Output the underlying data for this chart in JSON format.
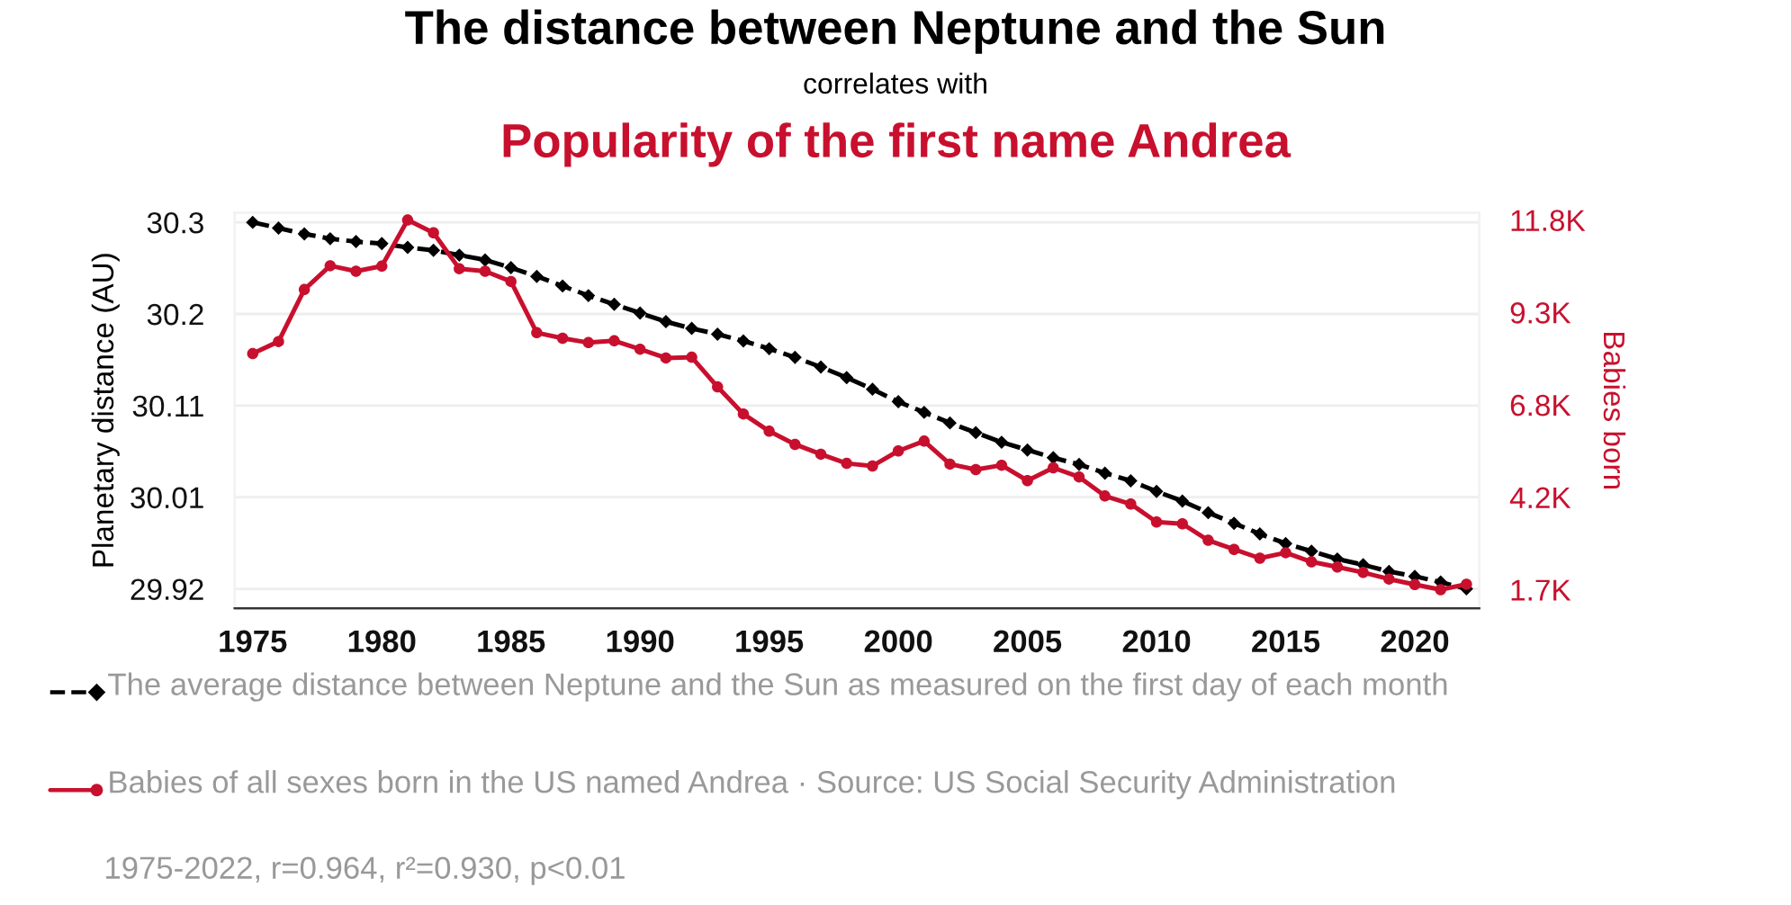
{
  "chart_data": {
    "type": "line",
    "title": "The distance between Neptune and the Sun",
    "subtitle": "correlates with",
    "annotations": [
      "Popularity of the first name Andrea",
      "1975-2022, r=0.964, r²=0.930, p<0.01"
    ],
    "ylabel": "Planetary distance (AU)",
    "y2label": "Babies born",
    "x": [
      1975,
      1976,
      1977,
      1978,
      1979,
      1980,
      1981,
      1982,
      1983,
      1984,
      1985,
      1986,
      1987,
      1988,
      1989,
      1990,
      1991,
      1992,
      1993,
      1994,
      1995,
      1996,
      1997,
      1998,
      1999,
      2000,
      2001,
      2002,
      2003,
      2004,
      2005,
      2006,
      2007,
      2008,
      2009,
      2010,
      2011,
      2012,
      2013,
      2014,
      2015,
      2016,
      2017,
      2018,
      2019,
      2020,
      2021,
      2022
    ],
    "series": [
      {
        "name": "The average distance between Neptune and the Sun as measured on the first day of each month",
        "color": "#000000",
        "marker": "diamond",
        "line_style": "dashed",
        "values": [
          30.3,
          30.294,
          30.288,
          30.283,
          30.28,
          30.278,
          30.274,
          30.271,
          30.266,
          30.261,
          30.253,
          30.244,
          30.234,
          30.224,
          30.215,
          30.206,
          30.197,
          30.19,
          30.184,
          30.177,
          30.169,
          30.16,
          30.15,
          30.139,
          30.127,
          30.114,
          30.103,
          30.092,
          30.082,
          30.072,
          30.064,
          30.056,
          30.049,
          30.04,
          30.032,
          30.021,
          30.011,
          29.999,
          29.988,
          29.977,
          29.967,
          29.959,
          29.951,
          29.945,
          29.938,
          29.933,
          29.927,
          29.92
        ]
      },
      {
        "name": "Babies of all sexes born in the US named Andrea · Source: US Social Security Administration",
        "color": "#c8102e",
        "marker": "circle",
        "line_style": "solid",
        "axis": "y2",
        "values": [
          8150,
          8480,
          9900,
          10550,
          10400,
          10540,
          11800,
          11450,
          10470,
          10400,
          10120,
          8720,
          8570,
          8450,
          8500,
          8270,
          8030,
          8050,
          7240,
          6500,
          6030,
          5670,
          5400,
          5150,
          5080,
          5490,
          5760,
          5130,
          4980,
          5100,
          4680,
          5030,
          4780,
          4260,
          4040,
          3550,
          3500,
          3050,
          2800,
          2560,
          2710,
          2460,
          2320,
          2170,
          1990,
          1840,
          1700,
          1850
        ]
      }
    ],
    "xlim": [
      1974.3,
      2022.5
    ],
    "xticks": [
      1975,
      1980,
      1985,
      1990,
      1995,
      2000,
      2005,
      2010,
      2015,
      2020
    ],
    "ylim": [
      29.9,
      30.31
    ],
    "yticks": [
      {
        "value": 29.92,
        "label": "29.92"
      },
      {
        "value": 30.015,
        "label": "30.01"
      },
      {
        "value": 30.11,
        "label": "30.11"
      },
      {
        "value": 30.205,
        "label": "30.2"
      },
      {
        "value": 30.3,
        "label": "30.3"
      }
    ],
    "y2lim": [
      1195,
      12000
    ],
    "y2ticks": [
      {
        "value": 1700,
        "label": "1.7K"
      },
      {
        "value": 4225,
        "label": "4.2K"
      },
      {
        "value": 6750,
        "label": "6.8K"
      },
      {
        "value": 9275,
        "label": "9.3K"
      },
      {
        "value": 11800,
        "label": "11.8K"
      }
    ],
    "grid": "y",
    "legend": "bottom"
  }
}
